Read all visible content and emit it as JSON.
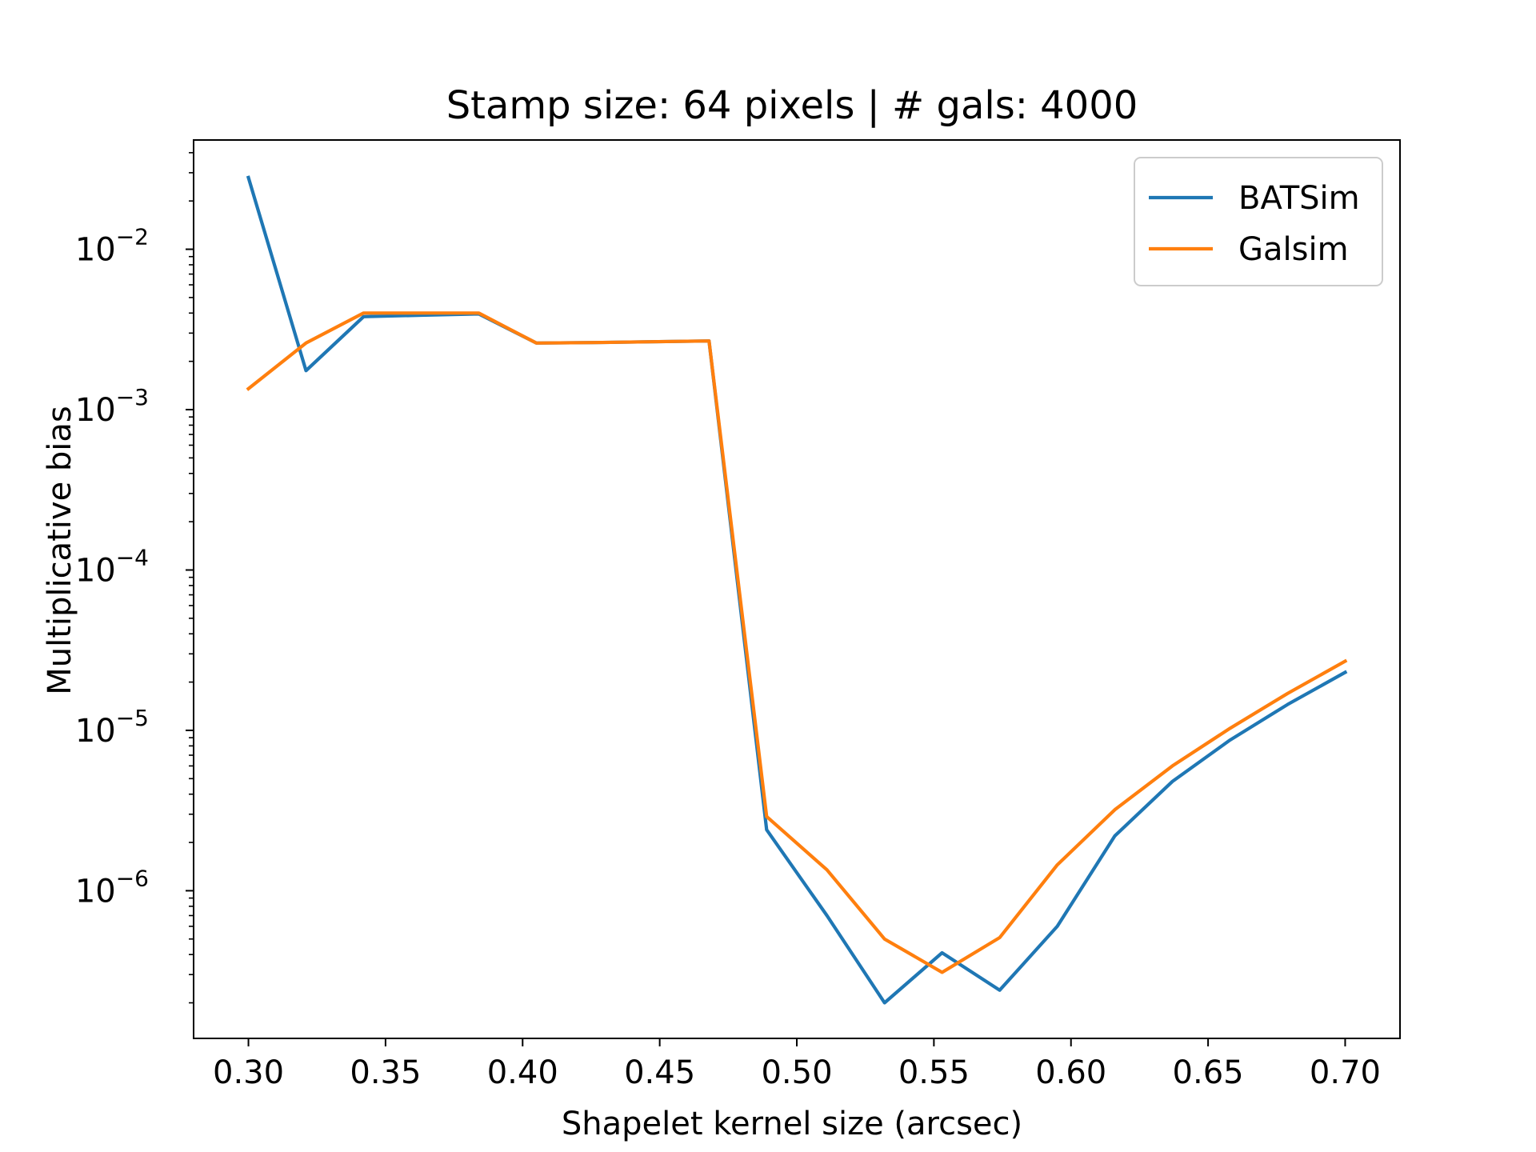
{
  "chart_data": {
    "type": "line",
    "title": "Stamp size: 64 pixels | # gals: 4000",
    "xlabel": "Shapelet kernel size (arcsec)",
    "ylabel": "Multiplicative bias",
    "yscale": "log",
    "xlim": [
      0.28,
      0.72
    ],
    "ylim": [
      1.2e-07,
      0.048
    ],
    "xticks": [
      0.3,
      0.35,
      0.4,
      0.45,
      0.5,
      0.55,
      0.6,
      0.65,
      0.7
    ],
    "xtick_labels": [
      "0.30",
      "0.35",
      "0.40",
      "0.45",
      "0.50",
      "0.55",
      "0.60",
      "0.65",
      "0.70"
    ],
    "yticks": [
      {
        "value": 0.01,
        "base": "10",
        "exp": "−2"
      },
      {
        "value": 0.001,
        "base": "10",
        "exp": "−3"
      },
      {
        "value": 0.0001,
        "base": "10",
        "exp": "−4"
      },
      {
        "value": 1e-05,
        "base": "10",
        "exp": "−5"
      },
      {
        "value": 1e-06,
        "base": "10",
        "exp": "−6"
      }
    ],
    "legend_position": "top-right",
    "x": [
      0.3,
      0.321,
      0.342,
      0.363,
      0.384,
      0.405,
      0.426,
      0.447,
      0.468,
      0.489,
      0.511,
      0.532,
      0.553,
      0.574,
      0.595,
      0.616,
      0.637,
      0.658,
      0.679,
      0.7
    ],
    "series": [
      {
        "name": "BATSim",
        "color": "#1f77b4",
        "values": [
          0.028,
          0.00175,
          0.0038,
          0.00388,
          0.00395,
          0.0026,
          0.00262,
          0.00265,
          0.00268,
          2.4e-06,
          7e-07,
          2e-07,
          4.1e-07,
          2.4e-07,
          6e-07,
          2.2e-06,
          4.8e-06,
          8.7e-06,
          1.45e-05,
          2.3e-05
        ]
      },
      {
        "name": "Galsim",
        "color": "#ff7f0e",
        "values": [
          0.00135,
          0.0026,
          0.004,
          0.004,
          0.004,
          0.0026,
          0.00262,
          0.00265,
          0.00268,
          2.9e-06,
          1.35e-06,
          5e-07,
          3.1e-07,
          5.1e-07,
          1.45e-06,
          3.2e-06,
          6e-06,
          1.03e-05,
          1.7e-05,
          2.7e-05
        ]
      }
    ]
  }
}
